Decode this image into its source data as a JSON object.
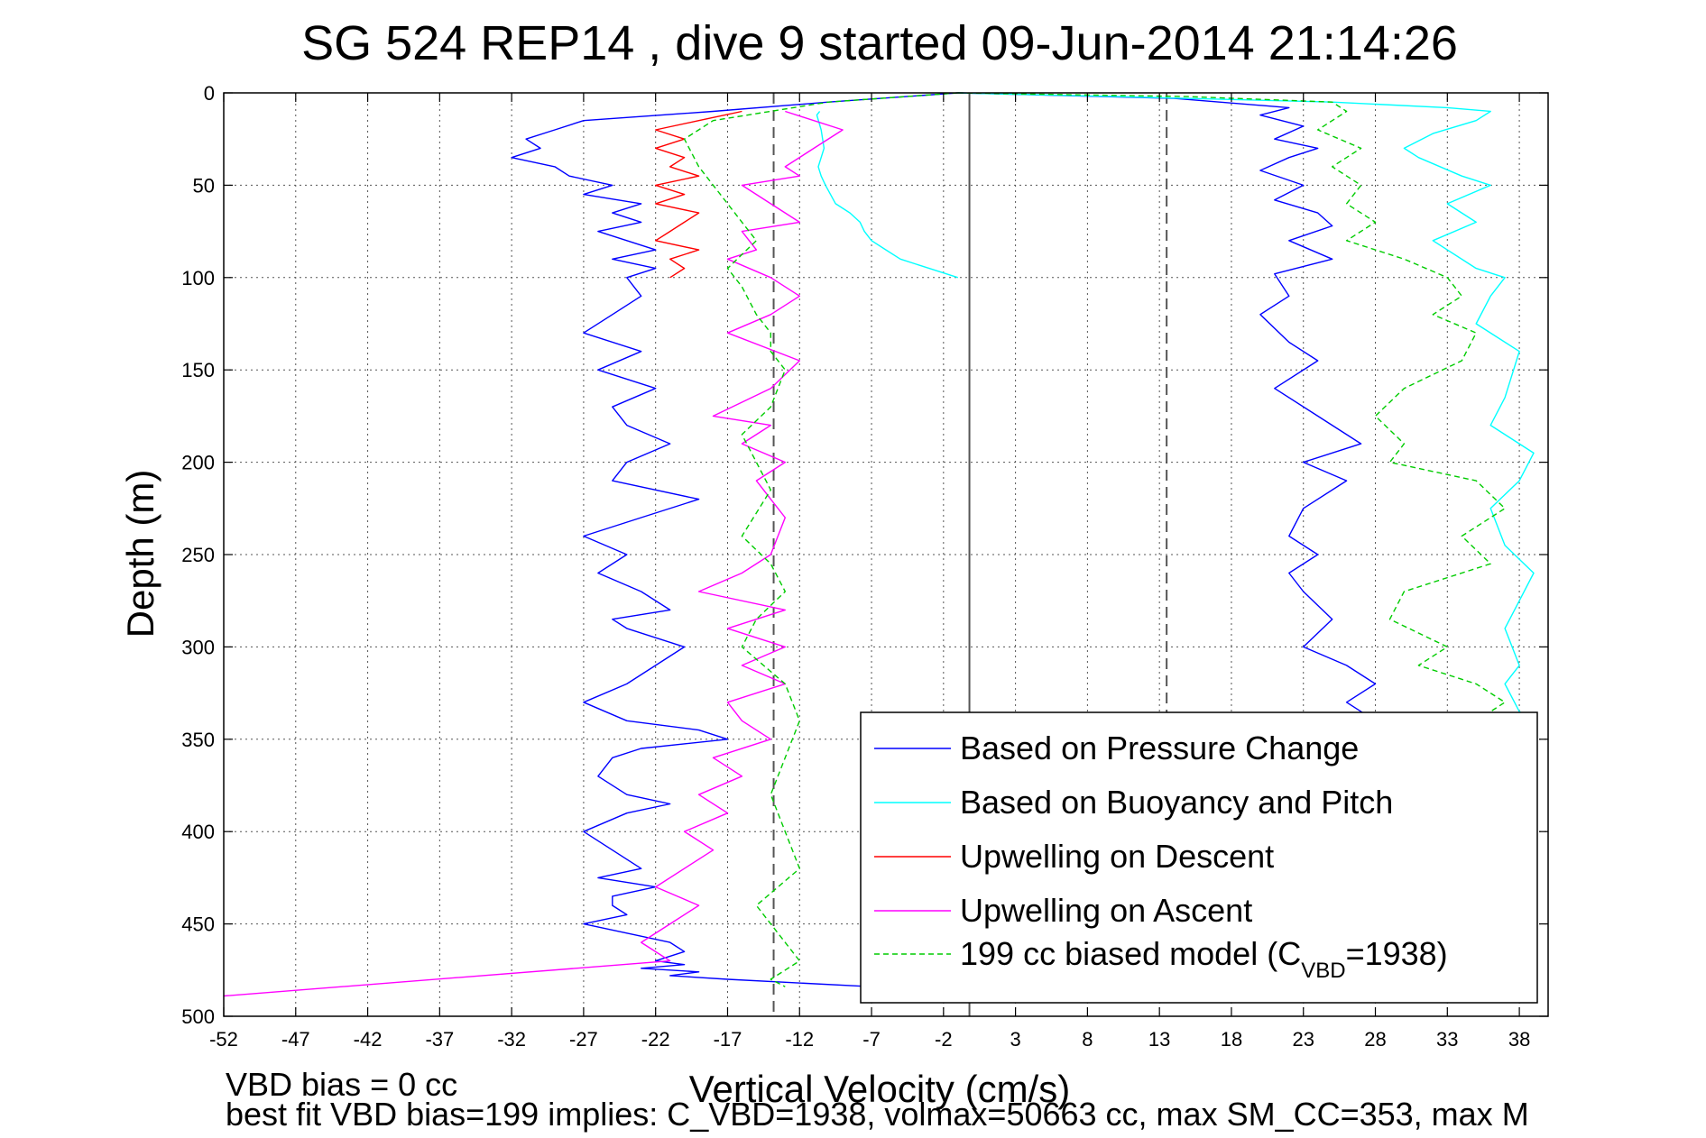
{
  "chart_data": {
    "type": "line",
    "title": "SG 524   REP14  , dive 9 started 09-Jun-2014 21:14:26",
    "xlabel": "Vertical Velocity (cm/s)",
    "ylabel": "Depth (m)",
    "xlim": [
      -52,
      40
    ],
    "ylim": [
      0,
      500
    ],
    "y_inverted": true,
    "grid": true,
    "legend_position": "bottom-right",
    "xticks": [
      -52,
      -47,
      -42,
      -37,
      -32,
      -27,
      -22,
      -17,
      -12,
      -7,
      -2,
      3,
      8,
      13,
      18,
      23,
      28,
      33,
      38
    ],
    "yticks": [
      0,
      50,
      100,
      150,
      200,
      250,
      300,
      350,
      400,
      450,
      500
    ],
    "reference_lines": [
      {
        "x": -0.2,
        "style": "solid",
        "color": "#555555"
      },
      {
        "x": -13.8,
        "style": "dashed",
        "color": "#555555",
        "y_range": [
          0,
          500
        ]
      },
      {
        "x": 13.5,
        "style": "dashed",
        "color": "#555555",
        "y_range": [
          0,
          340
        ]
      }
    ],
    "series": [
      {
        "name": "Based on Pressure Change",
        "color": "#0000ff",
        "style": "solid",
        "segments": [
          {
            "x": [
              -1,
              -10,
              -18,
              -27,
              -29,
              -31,
              -30,
              -32,
              -29,
              -28,
              -25,
              -27,
              -23,
              -25,
              -23,
              -26,
              -24,
              -22,
              -25,
              -22,
              -24,
              -23,
              -25,
              -27,
              -23,
              -26,
              -22,
              -25,
              -24,
              -21,
              -24,
              -25,
              -19,
              -23,
              -27,
              -24,
              -26,
              -23,
              -21,
              -25,
              -24,
              -20,
              -22,
              -24,
              -27,
              -24,
              -19,
              -17,
              -23,
              -25,
              -26,
              -24,
              -21,
              -24,
              -27,
              -25,
              -23,
              -26,
              -22,
              -25,
              -25,
              -24,
              -27,
              -24,
              -21,
              -20,
              -22,
              -20,
              -23,
              -19,
              -21,
              -17,
              -7
            ],
            "y": [
              0,
              5,
              10,
              15,
              20,
              25,
              30,
              35,
              40,
              45,
              50,
              55,
              60,
              65,
              70,
              75,
              80,
              85,
              90,
              95,
              100,
              110,
              120,
              130,
              140,
              150,
              160,
              170,
              180,
              190,
              200,
              210,
              220,
              230,
              240,
              250,
              260,
              270,
              280,
              285,
              290,
              300,
              310,
              320,
              330,
              340,
              345,
              350,
              355,
              360,
              370,
              380,
              385,
              390,
              400,
              410,
              420,
              425,
              430,
              435,
              440,
              445,
              450,
              455,
              460,
              465,
              470,
              472,
              474,
              476,
              478,
              480,
              484
            ]
          },
          {
            "x": [
              -1,
              14,
              22,
              20,
              23,
              21,
              24,
              22,
              20,
              23,
              21,
              24,
              25,
              22,
              25,
              21,
              22,
              20,
              22,
              24,
              21,
              24,
              27,
              23,
              26,
              23,
              22,
              24,
              22,
              23,
              25,
              23,
              26,
              28,
              26,
              28
            ],
            "y": [
              0,
              3,
              8,
              12,
              18,
              25,
              30,
              35,
              42,
              50,
              58,
              65,
              72,
              80,
              90,
              98,
              110,
              120,
              135,
              145,
              160,
              175,
              190,
              200,
              210,
              225,
              240,
              250,
              260,
              270,
              285,
              300,
              310,
              320,
              330,
              340
            ]
          }
        ]
      },
      {
        "name": "Based on Buoyancy and Pitch",
        "color": "#00ffff",
        "style": "solid",
        "segments": [
          {
            "x": [
              -1,
              -3,
              -5,
              -6,
              -7,
              -7.5,
              -7.8,
              -8.5,
              -9.5,
              -10.2,
              -10.5,
              -10.7,
              -10.3,
              -10.5,
              -10.8,
              -10.6
            ],
            "y": [
              100,
              95,
              90,
              85,
              80,
              75,
              70,
              65,
              60,
              50,
              45,
              40,
              30,
              20,
              12,
              10
            ]
          },
          {
            "x": [
              -1,
              10,
              25,
              33,
              36,
              35,
              32,
              30,
              31,
              34,
              36,
              33,
              35,
              32,
              35,
              37,
              36,
              35,
              38,
              37,
              36,
              39,
              38,
              36,
              37,
              39,
              38,
              37,
              38,
              37,
              38,
              39
            ],
            "y": [
              0,
              2,
              5,
              8,
              10,
              15,
              22,
              30,
              35,
              45,
              50,
              60,
              70,
              80,
              95,
              100,
              110,
              125,
              140,
              165,
              180,
              195,
              210,
              225,
              245,
              260,
              275,
              290,
              310,
              320,
              335,
              340
            ]
          }
        ]
      },
      {
        "name": "Upwelling on Descent",
        "color": "#ff0000",
        "style": "solid",
        "segments": [
          {
            "x": [
              -16,
              -19,
              -22,
              -20,
              -22,
              -20,
              -21,
              -19,
              -22,
              -20,
              -22,
              -19,
              -20,
              -21,
              -22,
              -19,
              -21,
              -20,
              -21
            ],
            "y": [
              10,
              15,
              20,
              25,
              30,
              35,
              40,
              45,
              50,
              55,
              60,
              65,
              70,
              75,
              80,
              85,
              90,
              95,
              100
            ]
          }
        ]
      },
      {
        "name": "Upwelling on Ascent",
        "color": "#ff00ff",
        "style": "solid",
        "segments": [
          {
            "x": [
              -13,
              -9,
              -11,
              -13,
              -12,
              -16,
              -14,
              -12,
              -16,
              -15,
              -17,
              -14,
              -12,
              -14,
              -17,
              -12,
              -14,
              -18,
              -14,
              -16,
              -13,
              -15,
              -14,
              -13,
              -14,
              -16,
              -19,
              -13,
              -17,
              -13,
              -16,
              -13,
              -17,
              -16,
              -14,
              -18,
              -16,
              -19,
              -17,
              -20,
              -18,
              -22,
              -19,
              -21,
              -23,
              -21,
              -52
            ],
            "y": [
              10,
              20,
              30,
              40,
              45,
              50,
              60,
              70,
              75,
              85,
              90,
              100,
              110,
              120,
              130,
              145,
              160,
              175,
              180,
              190,
              200,
              210,
              220,
              230,
              250,
              260,
              270,
              280,
              290,
              300,
              310,
              320,
              330,
              340,
              350,
              360,
              370,
              380,
              390,
              400,
              410,
              430,
              440,
              450,
              460,
              470,
              489
            ]
          }
        ]
      },
      {
        "name": "199 cc biased model (C",
        "name_subscript": "VBD",
        "name_suffix": "=1938)",
        "color": "#00cc00",
        "style": "dashed",
        "segments": [
          {
            "x": [
              -1,
              -10,
              -18,
              -20,
              -19,
              -18,
              -17,
              -16,
              -15,
              -17,
              -16,
              -15,
              -14,
              -14,
              -13,
              -14,
              -16,
              -15,
              -14,
              -16,
              -14,
              -13,
              -15,
              -16,
              -13,
              -12,
              -13,
              -14,
              -13,
              -12,
              -15,
              -13,
              -12,
              -13,
              -14,
              -13
            ],
            "y": [
              0,
              5,
              15,
              25,
              40,
              50,
              60,
              70,
              80,
              95,
              105,
              120,
              130,
              140,
              150,
              170,
              185,
              200,
              215,
              240,
              255,
              270,
              285,
              300,
              320,
              340,
              360,
              380,
              400,
              420,
              440,
              460,
              470,
              475,
              480,
              484
            ]
          },
          {
            "x": [
              -1,
              15,
              25,
              26,
              24,
              27,
              25,
              27,
              26,
              28,
              26,
              30,
              33,
              34,
              32,
              35,
              34,
              30,
              28,
              30,
              29,
              35,
              37,
              34,
              36,
              30,
              29,
              33,
              31,
              35,
              37,
              36,
              37
            ],
            "y": [
              0,
              2,
              5,
              10,
              20,
              30,
              40,
              50,
              60,
              70,
              80,
              90,
              100,
              110,
              120,
              130,
              145,
              160,
              175,
              190,
              200,
              210,
              225,
              240,
              255,
              270,
              285,
              300,
              310,
              320,
              330,
              335,
              340
            ]
          }
        ]
      }
    ],
    "legend": {
      "entries": [
        {
          "label": "Based on Pressure Change",
          "color": "#0000ff",
          "style": "solid"
        },
        {
          "label": "Based on Buoyancy and Pitch",
          "color": "#00ffff",
          "style": "solid"
        },
        {
          "label": "Upwelling on Descent",
          "color": "#ff0000",
          "style": "solid"
        },
        {
          "label": "Upwelling on Ascent",
          "color": "#ff00ff",
          "style": "solid"
        },
        {
          "label": "199 cc biased model (C",
          "sub": "VBD",
          "suffix": "=1938)",
          "color": "#00cc00",
          "style": "dashed"
        }
      ]
    },
    "annotations": [
      "VBD bias = 0 cc",
      "best fit VBD bias=199 implies: C_VBD=1938, volmax=50663 cc, max SM_CC=353, max M"
    ]
  }
}
